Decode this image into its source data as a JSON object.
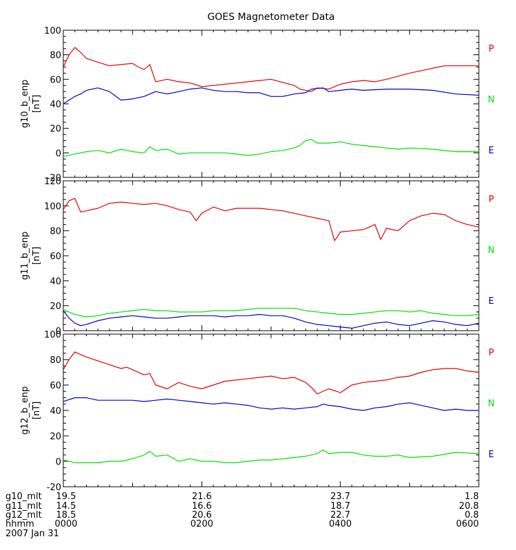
{
  "title": "GOES Magnetometer Data",
  "colors": {
    "P": "#e00000",
    "N": "#00e000",
    "E": "#0000c0",
    "axis": "#000000",
    "bg": "#ffffff"
  },
  "chart_data": [
    {
      "type": "line",
      "ylabel": "g10_b_enp",
      "yunit": "[nT]",
      "ylim": [
        -20,
        100
      ],
      "yticks": [
        "-20",
        "0",
        "20",
        "40",
        "60",
        "80",
        "100"
      ],
      "xlim": [
        0,
        360
      ],
      "legend": [
        {
          "text": "P",
          "color": "#e00000"
        },
        {
          "text": "N",
          "color": "#00e000"
        },
        {
          "text": "E",
          "color": "#0000c0"
        }
      ],
      "series": [
        {
          "name": "P",
          "color": "#e00000",
          "x": [
            0,
            5,
            10,
            15,
            20,
            30,
            40,
            50,
            60,
            65,
            70,
            75,
            80,
            90,
            100,
            110,
            120,
            130,
            140,
            150,
            160,
            180,
            200,
            205,
            215,
            220,
            230,
            240,
            250,
            260,
            270,
            280,
            300,
            330,
            360
          ],
          "y": [
            70,
            80,
            86,
            82,
            77,
            74,
            71,
            72,
            73,
            70,
            68,
            72,
            58,
            60,
            58,
            57,
            54,
            55,
            56,
            57,
            58,
            60,
            55,
            52,
            50,
            53,
            52,
            56,
            58,
            59,
            58,
            60,
            65,
            71,
            71
          ]
        },
        {
          "name": "N",
          "color": "#00e000",
          "x": [
            0,
            10,
            20,
            30,
            40,
            50,
            60,
            70,
            75,
            80,
            90,
            100,
            110,
            120,
            140,
            150,
            160,
            170,
            180,
            190,
            200,
            205,
            210,
            215,
            220,
            230,
            240,
            250,
            260,
            270,
            280,
            290,
            300,
            320,
            340,
            360
          ],
          "y": [
            -3,
            -1,
            1,
            2,
            0,
            3,
            1,
            0,
            5,
            2,
            3,
            -1,
            0,
            0,
            0,
            -1,
            -2,
            -1,
            1,
            2,
            4,
            6,
            10,
            11,
            8,
            8,
            9,
            7,
            6,
            5,
            4,
            3,
            4,
            3,
            1,
            1
          ]
        },
        {
          "name": "E",
          "color": "#0000c0",
          "x": [
            0,
            5,
            10,
            15,
            20,
            30,
            40,
            50,
            60,
            70,
            80,
            90,
            100,
            110,
            120,
            130,
            140,
            150,
            160,
            170,
            180,
            190,
            200,
            210,
            215,
            225,
            230,
            240,
            250,
            260,
            280,
            300,
            320,
            340,
            360
          ],
          "y": [
            40,
            43,
            46,
            48,
            51,
            53,
            50,
            43,
            44,
            46,
            50,
            48,
            50,
            52,
            53,
            51,
            50,
            50,
            49,
            49,
            46,
            46,
            48,
            49,
            52,
            53,
            50,
            51,
            52,
            51,
            52,
            52,
            51,
            48,
            47
          ]
        }
      ]
    },
    {
      "type": "line",
      "ylabel": "g11_b_enp",
      "yunit": "[nT]",
      "ylim": [
        0,
        120
      ],
      "yticks": [
        "0",
        "20",
        "40",
        "60",
        "80",
        "100",
        "120"
      ],
      "xlim": [
        0,
        360
      ],
      "legend": [
        {
          "text": "P",
          "color": "#e00000"
        },
        {
          "text": "N",
          "color": "#00e000"
        },
        {
          "text": "E",
          "color": "#0000c0"
        }
      ],
      "series": [
        {
          "name": "P",
          "color": "#e00000",
          "x": [
            0,
            5,
            10,
            15,
            20,
            30,
            40,
            50,
            60,
            70,
            80,
            90,
            100,
            110,
            115,
            120,
            130,
            140,
            150,
            160,
            170,
            180,
            190,
            200,
            210,
            220,
            230,
            235,
            240,
            250,
            260,
            270,
            275,
            280,
            290,
            300,
            310,
            320,
            330,
            340,
            350,
            360
          ],
          "y": [
            97,
            104,
            106,
            95,
            96,
            98,
            102,
            103,
            102,
            101,
            102,
            100,
            97,
            95,
            88,
            94,
            99,
            96,
            98,
            98,
            98,
            97,
            96,
            94,
            92,
            90,
            88,
            72,
            79,
            80,
            81,
            85,
            73,
            82,
            80,
            88,
            92,
            94,
            93,
            88,
            85,
            83
          ]
        },
        {
          "name": "N",
          "color": "#00e000",
          "x": [
            0,
            5,
            10,
            20,
            30,
            40,
            50,
            60,
            70,
            80,
            90,
            100,
            110,
            120,
            130,
            140,
            150,
            160,
            170,
            180,
            190,
            200,
            210,
            220,
            230,
            240,
            250,
            260,
            270,
            280,
            290,
            300,
            310,
            320,
            330,
            340,
            350,
            360
          ],
          "y": [
            17,
            15,
            13,
            11,
            12,
            14,
            15,
            16,
            17,
            16,
            16,
            15,
            15,
            15,
            16,
            16,
            16,
            17,
            18,
            18,
            18,
            18,
            16,
            15,
            14,
            13,
            13,
            14,
            15,
            16,
            16,
            15,
            16,
            14,
            13,
            12,
            12,
            13
          ]
        },
        {
          "name": "E",
          "color": "#0000c0",
          "x": [
            0,
            5,
            10,
            15,
            20,
            30,
            40,
            50,
            60,
            70,
            80,
            90,
            100,
            110,
            120,
            130,
            140,
            150,
            160,
            170,
            180,
            190,
            200,
            210,
            220,
            230,
            240,
            250,
            260,
            270,
            280,
            290,
            300,
            310,
            320,
            330,
            340,
            350,
            360
          ],
          "y": [
            16,
            10,
            6,
            4,
            5,
            8,
            10,
            11,
            12,
            11,
            10,
            10,
            11,
            12,
            12,
            12,
            11,
            12,
            12,
            13,
            12,
            12,
            10,
            7,
            5,
            4,
            3,
            2,
            4,
            6,
            7,
            5,
            4,
            6,
            8,
            7,
            5,
            4,
            6
          ]
        }
      ]
    },
    {
      "type": "line",
      "ylabel": "g12_b_enp",
      "yunit": "[nT]",
      "ylim": [
        -20,
        100
      ],
      "yticks": [
        "-20",
        "0",
        "20",
        "40",
        "60",
        "80",
        "100"
      ],
      "xlim": [
        0,
        360
      ],
      "legend": [
        {
          "text": "P",
          "color": "#e00000"
        },
        {
          "text": "N",
          "color": "#00e000"
        },
        {
          "text": "E",
          "color": "#0000c0"
        }
      ],
      "series": [
        {
          "name": "P",
          "color": "#e00000",
          "x": [
            0,
            5,
            10,
            20,
            30,
            40,
            50,
            55,
            60,
            70,
            75,
            80,
            90,
            100,
            110,
            120,
            130,
            140,
            150,
            160,
            170,
            180,
            190,
            200,
            210,
            215,
            220,
            230,
            240,
            250,
            260,
            270,
            280,
            290,
            300,
            310,
            320,
            330,
            340,
            350,
            360
          ],
          "y": [
            72,
            80,
            86,
            82,
            79,
            76,
            73,
            74,
            72,
            68,
            69,
            60,
            57,
            62,
            59,
            57,
            60,
            63,
            64,
            65,
            66,
            67,
            65,
            66,
            62,
            58,
            53,
            57,
            54,
            60,
            62,
            63,
            64,
            66,
            67,
            70,
            72,
            73,
            73,
            71,
            70
          ]
        },
        {
          "name": "N",
          "color": "#00e000",
          "x": [
            0,
            10,
            20,
            30,
            40,
            50,
            60,
            70,
            75,
            80,
            90,
            100,
            110,
            120,
            130,
            140,
            150,
            160,
            170,
            180,
            190,
            200,
            210,
            220,
            225,
            230,
            240,
            250,
            260,
            270,
            280,
            290,
            300,
            320,
            340,
            360
          ],
          "y": [
            1,
            -1,
            -1,
            -1,
            0,
            0,
            2,
            5,
            8,
            4,
            5,
            0,
            2,
            0,
            0,
            -1,
            -1,
            0,
            1,
            1,
            2,
            3,
            4,
            6,
            9,
            6,
            7,
            7,
            5,
            4,
            4,
            5,
            3,
            4,
            7,
            6
          ]
        },
        {
          "name": "E",
          "color": "#0000c0",
          "x": [
            0,
            10,
            20,
            30,
            40,
            50,
            60,
            70,
            80,
            90,
            100,
            110,
            120,
            130,
            140,
            150,
            160,
            170,
            180,
            190,
            200,
            210,
            220,
            225,
            230,
            240,
            250,
            260,
            270,
            280,
            290,
            300,
            310,
            320,
            330,
            340,
            350,
            360
          ],
          "y": [
            47,
            50,
            50,
            48,
            48,
            48,
            48,
            47,
            48,
            49,
            48,
            47,
            46,
            45,
            46,
            45,
            44,
            42,
            41,
            42,
            41,
            42,
            43,
            45,
            44,
            43,
            41,
            40,
            42,
            43,
            45,
            46,
            44,
            42,
            40,
            41,
            40,
            40
          ]
        }
      ]
    }
  ],
  "xaxis": {
    "rows": [
      {
        "label": "g10_mlt",
        "ticks": [
          "19.5",
          "21.6",
          "23.7",
          "1.8"
        ]
      },
      {
        "label": "g11_mlt",
        "ticks": [
          "14.5",
          "16.6",
          "18.7",
          "20.8"
        ]
      },
      {
        "label": "g12_mlt",
        "ticks": [
          "18.5",
          "20.6",
          "22.7",
          "0.8"
        ]
      },
      {
        "label": "hhmm",
        "ticks": [
          "0000",
          "0200",
          "0400",
          "0600"
        ]
      }
    ],
    "tick_minutes": [
      0,
      120,
      240,
      360
    ],
    "date": "2007 Jan 31"
  }
}
